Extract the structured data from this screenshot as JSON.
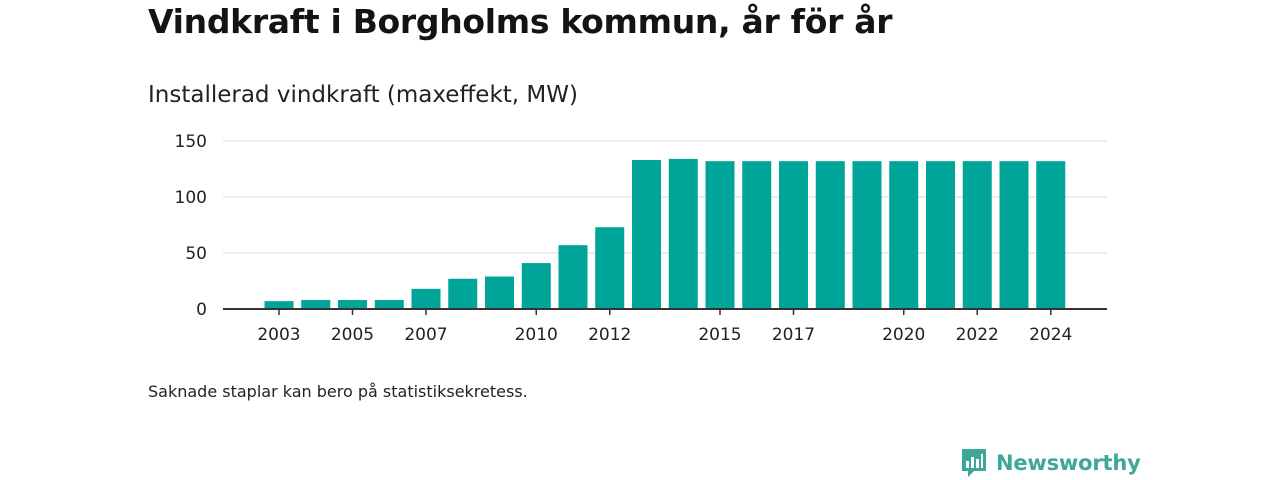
{
  "title": "Vindkraft i Borgholms kommun, år för år",
  "subtitle": "Installerad vindkraft (maxeffekt, MW)",
  "note": "Saknade staplar kan bero på statistiksekretess.",
  "brand": {
    "name": "Newsworthy",
    "icon": "newsworthy-logo-icon"
  },
  "colors": {
    "bar": "#00a499",
    "grid": "#d9d9d9",
    "axis": "#333333",
    "brand": "#3fa79a"
  },
  "chart_data": {
    "type": "bar",
    "title": "Installerad vindkraft (maxeffekt, MW)",
    "categories": [
      "2003",
      "2004",
      "2005",
      "2006",
      "2007",
      "2008",
      "2009",
      "2010",
      "2011",
      "2012",
      "2013",
      "2014",
      "2015",
      "2016",
      "2017",
      "2018",
      "2019",
      "2020",
      "2021",
      "2022",
      "2023",
      "2024"
    ],
    "values": [
      7,
      8,
      8,
      8,
      18,
      27,
      29,
      41,
      57,
      73,
      133,
      134,
      132,
      132,
      132,
      132,
      132,
      132,
      132,
      132,
      132,
      132
    ],
    "x_tick_labels": [
      "2003",
      "2005",
      "2007",
      "2010",
      "2012",
      "2015",
      "2017",
      "2020",
      "2022",
      "2024"
    ],
    "y_ticks": [
      0,
      50,
      100,
      150
    ],
    "ylim": [
      0,
      150
    ],
    "grid": true,
    "legend": "none"
  }
}
